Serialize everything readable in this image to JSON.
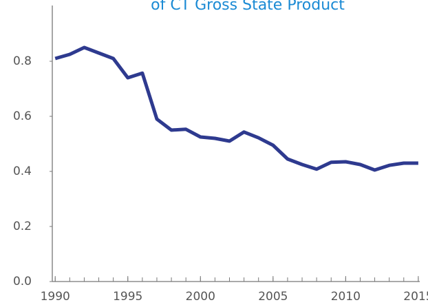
{
  "chart_data": {
    "type": "line",
    "title": "of CT Gross State Product",
    "x": [
      1990,
      1991,
      1992,
      1993,
      1994,
      1995,
      1996,
      1997,
      1998,
      1999,
      2000,
      2001,
      2002,
      2003,
      2004,
      2005,
      2006,
      2007,
      2008,
      2009,
      2010,
      2011,
      2012,
      2013,
      2014,
      2015
    ],
    "series": [
      {
        "color": "#2e3a8f",
        "values": [
          0.81,
          0.825,
          0.85,
          0.83,
          0.81,
          0.74,
          0.757,
          0.59,
          0.55,
          0.553,
          0.525,
          0.52,
          0.51,
          0.543,
          0.522,
          0.495,
          0.445,
          0.425,
          0.408,
          0.433,
          0.435,
          0.425,
          0.405,
          0.422,
          0.43,
          0.43
        ]
      }
    ],
    "xlim": [
      1989.8,
      2015.1
    ],
    "xticks": [
      1990,
      1995,
      2000,
      2005,
      2010,
      2015
    ],
    "ylim": [
      0,
      1
    ],
    "yticks": [
      {
        "value": 0,
        "label": "0.0"
      },
      0.2,
      0.4,
      0.6,
      0.8
    ],
    "grid": false
  }
}
